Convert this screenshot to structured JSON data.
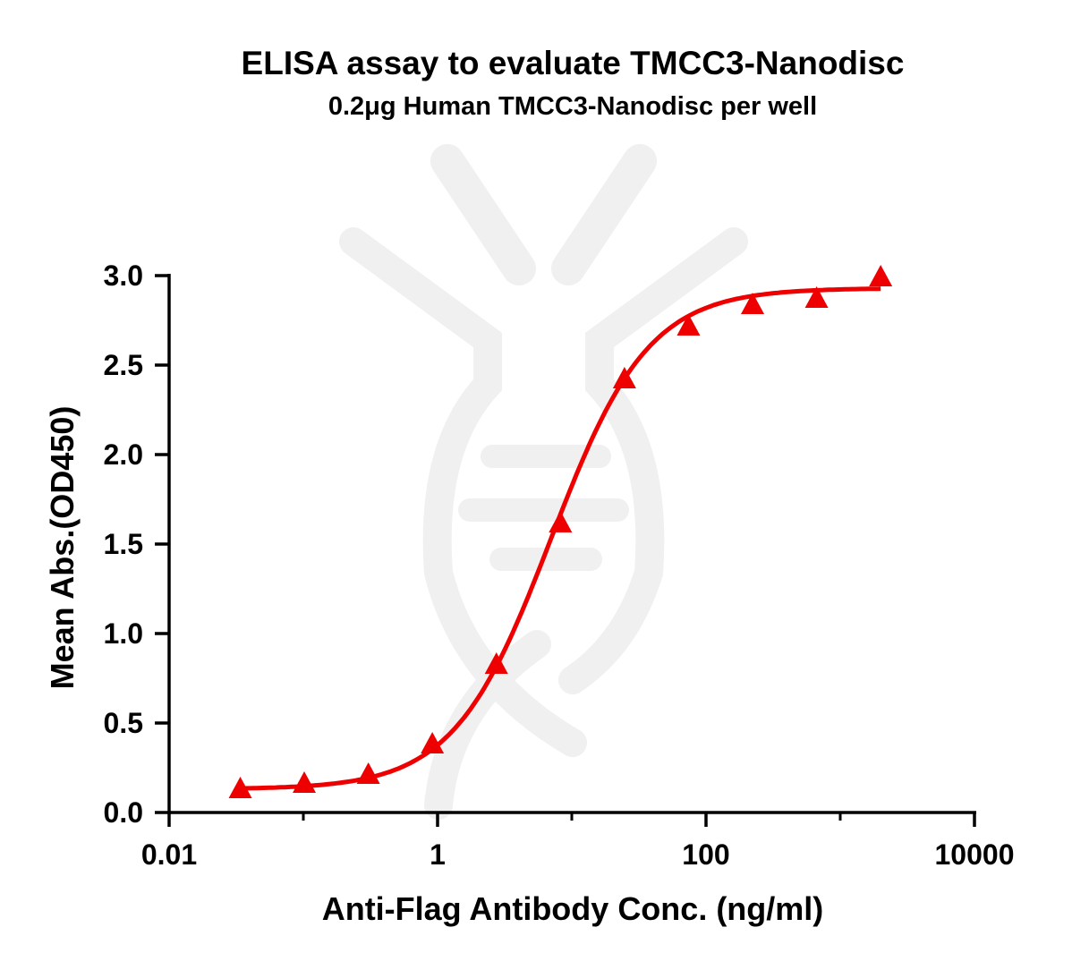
{
  "chart_data": {
    "type": "scatter",
    "title": "ELISA assay to evaluate TMCC3-Nanodisc",
    "subtitle": "0.2μg Human TMCC3-Nanodisc per well",
    "xlabel": "Anti-Flag Antibody Conc. (ng/ml)",
    "ylabel": "Mean Abs.(OD450)",
    "xscale": "log",
    "xlim": [
      0.01,
      10000
    ],
    "ylim": [
      0,
      3.0
    ],
    "xticks": [
      "0.01",
      "1",
      "100",
      "10000"
    ],
    "xtick_values": [
      0.01,
      1,
      100,
      10000
    ],
    "yticks": [
      "0.0",
      "0.5",
      "1.0",
      "1.5",
      "2.0",
      "2.5",
      "3.0"
    ],
    "ytick_values": [
      0,
      0.5,
      1.0,
      1.5,
      2.0,
      2.5,
      3.0
    ],
    "grid": false,
    "marker": "triangle",
    "color": "#ee0000",
    "fit": "sigmoidal curve",
    "series": [
      {
        "x": [
          0.0339,
          0.1016,
          0.305,
          0.914,
          2.743,
          8.23,
          24.69,
          74.07,
          222.2,
          666.7,
          2000
        ],
        "y": [
          0.125,
          0.155,
          0.205,
          0.375,
          0.82,
          1.61,
          2.415,
          2.71,
          2.83,
          2.865,
          2.985
        ]
      }
    ]
  }
}
